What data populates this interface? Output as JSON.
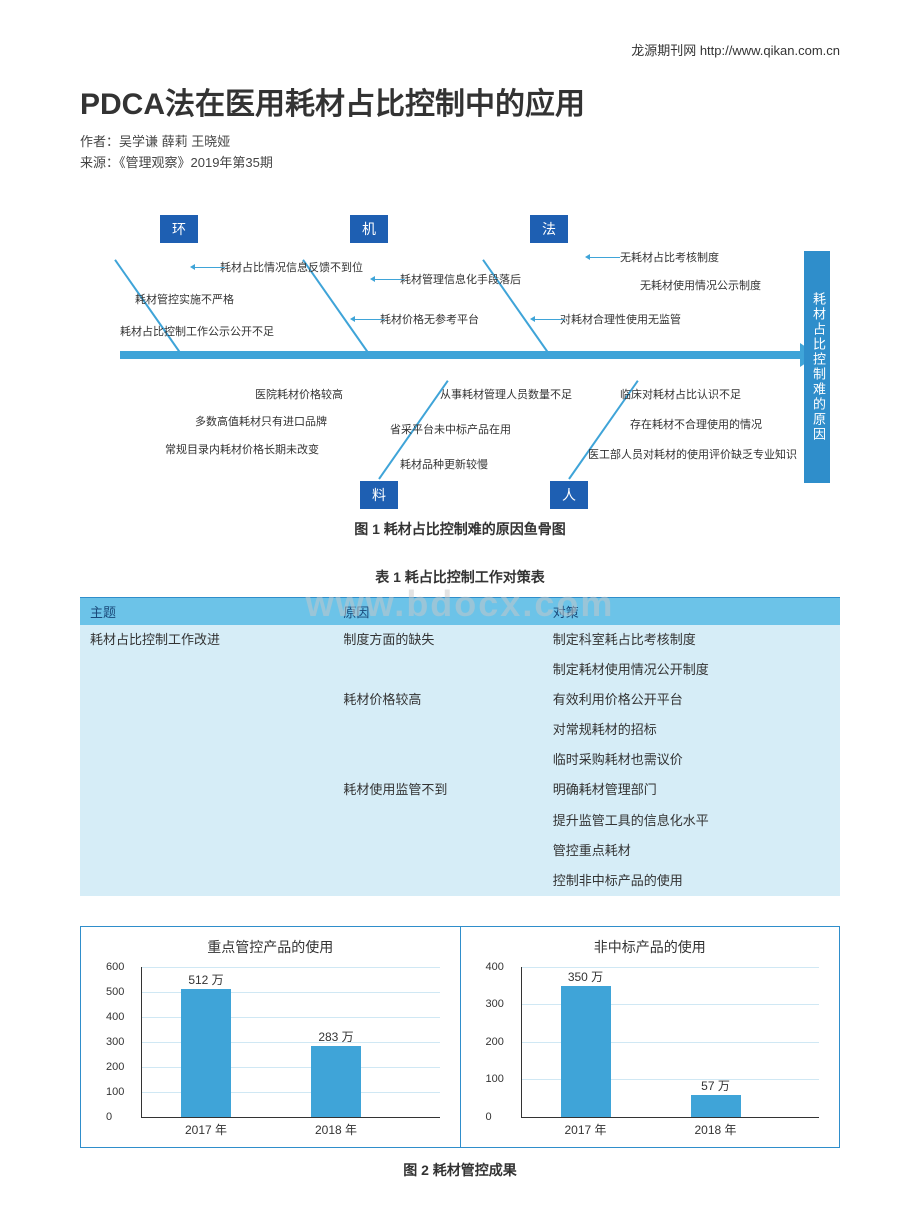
{
  "header": {
    "source_link": "龙源期刊网 http://www.qikan.com.cn"
  },
  "title": "PDCA法在医用耗材占比控制中的应用",
  "authors_line": "作者：吴学谦 薛莉 王晓娅",
  "source_line": "来源：《管理观察》2019年第35期",
  "fishbone": {
    "result": "耗材占比控制难的原因",
    "categories": {
      "huan": {
        "label": "环",
        "items": [
          "耗材占比情况信息反馈不到位",
          "耗材管控实施不严格",
          "耗材占比控制工作公示公开不足"
        ]
      },
      "ji": {
        "label": "机",
        "items": [
          "耗材管理信息化手段落后",
          "耗材价格无参考平台"
        ]
      },
      "fa": {
        "label": "法",
        "items": [
          "无耗材占比考核制度",
          "无耗材使用情况公示制度",
          "对耗材合理性使用无监管"
        ]
      },
      "liao": {
        "label": "料",
        "items": [
          "医院耗材价格较高",
          "多数高值耗材只有进口品牌",
          "常规目录内耗材价格长期未改变",
          "耗材品种更新较慢",
          "省采平台未中标产品在用"
        ]
      },
      "ren": {
        "label": "人",
        "items": [
          "从事耗材管理人员数量不足",
          "临床对耗材占比认识不足",
          "存在耗材不合理使用的情况",
          "医工部人员对耗材的使用评价缺乏专业知识"
        ]
      }
    },
    "caption": "图 1  耗材占比控制难的原因鱼骨图"
  },
  "watermark": "www.bdocx.com",
  "table": {
    "caption": "表 1  耗占比控制工作对策表",
    "headers": [
      "主题",
      "原因",
      "对策"
    ],
    "topic": "耗材占比控制工作改进",
    "rows": [
      {
        "cause": "制度方面的缺失",
        "actions": [
          "制定科室耗占比考核制度",
          "制定耗材使用情况公开制度"
        ]
      },
      {
        "cause": "耗材价格较高",
        "actions": [
          "有效利用价格公开平台",
          "对常规耗材的招标",
          "临时采购耗材也需议价"
        ]
      },
      {
        "cause": "耗材使用监管不到",
        "actions": [
          "明确耗材管理部门",
          "提升监管工具的信息化水平",
          "管控重点耗材",
          "控制非中标产品的使用"
        ]
      }
    ]
  },
  "charts": {
    "caption": "图 2  耗材管控成果",
    "chart1": {
      "title": "重点管控产品的使用",
      "bar_color": "#3fa4d8",
      "grid_color": "#d0e8f4",
      "ylim_max": 600,
      "ytick_step": 100,
      "categories": [
        "2017 年",
        "2018 年"
      ],
      "values": [
        512,
        283
      ],
      "value_labels": [
        "512 万",
        "283 万"
      ]
    },
    "chart2": {
      "title": "非中标产品的使用",
      "bar_color": "#3fa4d8",
      "grid_color": "#d0e8f4",
      "ylim_max": 400,
      "ytick_step": 100,
      "categories": [
        "2017 年",
        "2018 年"
      ],
      "values": [
        350,
        57
      ],
      "value_labels": [
        "350 万",
        "57 万"
      ]
    }
  }
}
